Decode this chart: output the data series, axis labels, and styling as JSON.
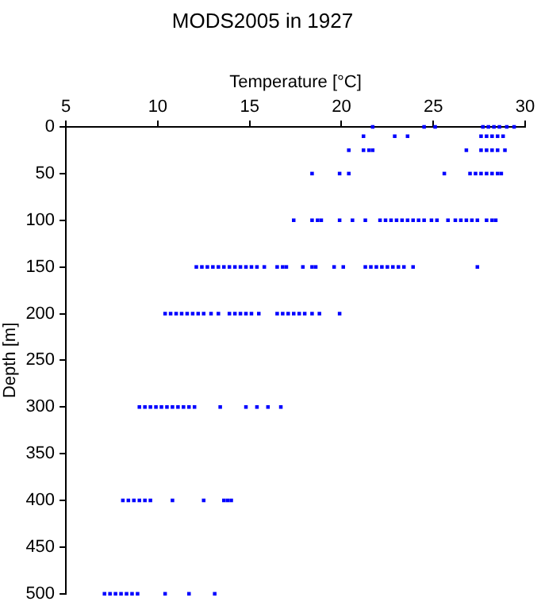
{
  "chart_data": {
    "type": "scatter",
    "title": "MODS2005 in 1927",
    "xlabel": "Temperature [°C]",
    "ylabel": "Depth [m]",
    "xlim": [
      5,
      30
    ],
    "xticks": [
      5,
      10,
      15,
      20,
      25,
      30
    ],
    "ylim": [
      500,
      0
    ],
    "yticks": [
      0,
      50,
      100,
      150,
      200,
      250,
      300,
      350,
      400,
      450,
      500
    ],
    "grid": false,
    "legend": false,
    "marker": "square",
    "series": [
      {
        "color": "#0000ff",
        "x": [
          21.7,
          24.5,
          25.1,
          27.7,
          28.0,
          28.3,
          28.6,
          29.0,
          29.4
        ],
        "values": [
          0,
          0,
          0,
          0,
          0,
          0,
          0,
          0,
          0
        ]
      },
      {
        "color": "#0000ff",
        "x": [
          21.2,
          22.9,
          23.6,
          27.6,
          27.9,
          28.2,
          28.5,
          28.8
        ],
        "values": [
          10,
          10,
          10,
          10,
          10,
          10,
          10,
          10
        ]
      },
      {
        "color": "#0000ff",
        "x": [
          20.4,
          21.2,
          21.5,
          21.7,
          26.8,
          27.6,
          27.9,
          28.2,
          28.5,
          28.9
        ],
        "values": [
          25,
          25,
          25,
          25,
          25,
          25,
          25,
          25,
          25,
          25
        ]
      },
      {
        "color": "#0000ff",
        "x": [
          18.4,
          19.9,
          20.4,
          25.6,
          27.0,
          27.3,
          27.6,
          27.9,
          28.2,
          28.5,
          28.7
        ],
        "values": [
          50,
          50,
          50,
          50,
          50,
          50,
          50,
          50,
          50,
          50,
          50
        ]
      },
      {
        "color": "#0000ff",
        "x": [
          17.4,
          18.4,
          18.7,
          18.9,
          19.9,
          20.6,
          21.3,
          22.1,
          22.4,
          22.7,
          23.0,
          23.3,
          23.6,
          23.9,
          24.2,
          24.5,
          24.9,
          25.2,
          25.8,
          26.2,
          26.5,
          26.8,
          27.1,
          27.4,
          27.9,
          28.2,
          28.4
        ],
        "values": [
          100,
          100,
          100,
          100,
          100,
          100,
          100,
          100,
          100,
          100,
          100,
          100,
          100,
          100,
          100,
          100,
          100,
          100,
          100,
          100,
          100,
          100,
          100,
          100,
          100,
          100,
          100
        ]
      },
      {
        "color": "#0000ff",
        "x": [
          12.1,
          12.4,
          12.7,
          13.0,
          13.3,
          13.6,
          13.9,
          14.2,
          14.5,
          14.8,
          15.1,
          15.4,
          15.8,
          16.5,
          16.8,
          17.0,
          17.9,
          18.4,
          18.6,
          19.6,
          20.1,
          21.3,
          21.6,
          21.9,
          22.2,
          22.5,
          22.8,
          23.1,
          23.4,
          23.9,
          27.4
        ],
        "values": [
          150,
          150,
          150,
          150,
          150,
          150,
          150,
          150,
          150,
          150,
          150,
          150,
          150,
          150,
          150,
          150,
          150,
          150,
          150,
          150,
          150,
          150,
          150,
          150,
          150,
          150,
          150,
          150,
          150,
          150,
          150
        ]
      },
      {
        "color": "#0000ff",
        "x": [
          10.4,
          10.7,
          11.0,
          11.3,
          11.6,
          11.9,
          12.2,
          12.5,
          12.9,
          13.3,
          13.9,
          14.2,
          14.5,
          14.8,
          15.1,
          15.5,
          16.5,
          16.8,
          17.1,
          17.4,
          17.7,
          18.0,
          18.4,
          18.8,
          19.9
        ],
        "values": [
          200,
          200,
          200,
          200,
          200,
          200,
          200,
          200,
          200,
          200,
          200,
          200,
          200,
          200,
          200,
          200,
          200,
          200,
          200,
          200,
          200,
          200,
          200,
          200,
          200
        ]
      },
      {
        "color": "#0000ff",
        "x": [
          9.0,
          9.3,
          9.6,
          9.9,
          10.2,
          10.5,
          10.8,
          11.1,
          11.4,
          11.7,
          12.0,
          13.4,
          14.8,
          15.4,
          16.0,
          16.7
        ],
        "values": [
          300,
          300,
          300,
          300,
          300,
          300,
          300,
          300,
          300,
          300,
          300,
          300,
          300,
          300,
          300,
          300
        ]
      },
      {
        "color": "#0000ff",
        "x": [
          8.1,
          8.4,
          8.7,
          9.0,
          9.3,
          9.6,
          10.8,
          12.5,
          13.6,
          13.8,
          14.0
        ],
        "values": [
          400,
          400,
          400,
          400,
          400,
          400,
          400,
          400,
          400,
          400,
          400
        ]
      },
      {
        "color": "#0000ff",
        "x": [
          7.1,
          7.4,
          7.7,
          8.0,
          8.3,
          8.6,
          8.9,
          10.4,
          11.7,
          13.1
        ],
        "values": [
          500,
          500,
          500,
          500,
          500,
          500,
          500,
          500,
          500,
          500
        ]
      }
    ]
  }
}
